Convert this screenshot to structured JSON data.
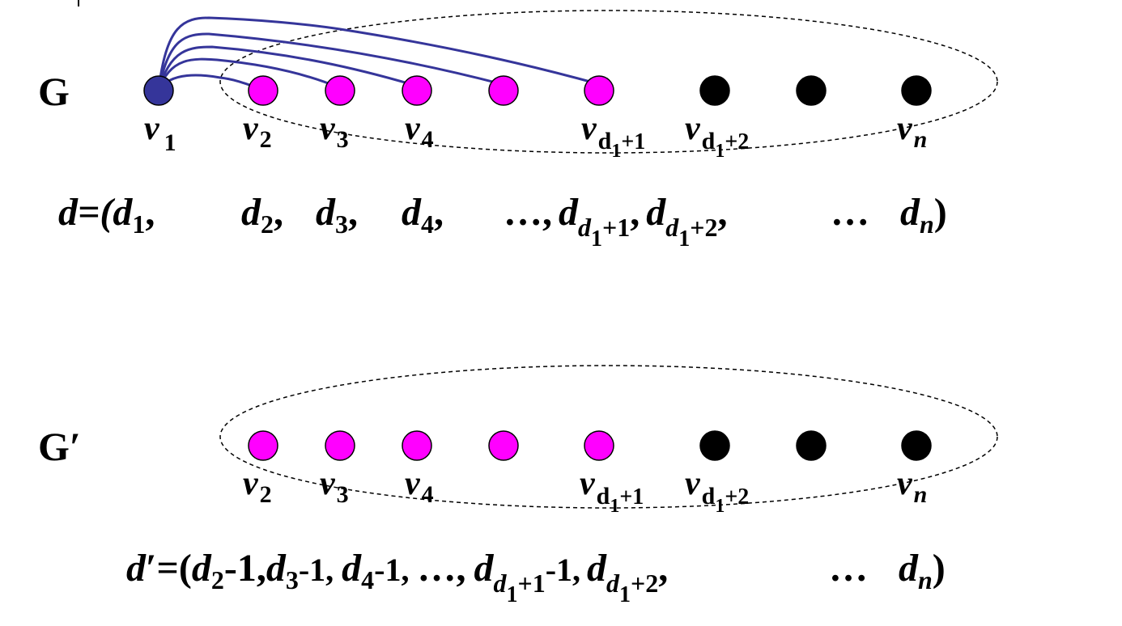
{
  "top": {
    "graph_label": "G",
    "vertex_labels": {
      "v1": {
        "base": "v",
        "sub": "1"
      },
      "v2": {
        "base": "v",
        "sub": "2"
      },
      "v3": {
        "base": "v",
        "sub": "3"
      },
      "v4": {
        "base": "v",
        "sub": "4"
      },
      "vd1p1": {
        "base": "v",
        "sub": "d",
        "subsub": "1",
        "tail": "+1"
      },
      "vd1p2": {
        "base": "v",
        "sub": "d",
        "subsub": "1",
        "tail": "+2"
      },
      "vn": {
        "base": "v",
        "sub": "n"
      }
    },
    "sequence": {
      "prefix": "d=(",
      "d1": {
        "base": "d",
        "sub": "1",
        "tail": ","
      },
      "d2": {
        "base": "d",
        "sub": "2",
        "tail": ","
      },
      "d3": {
        "base": "d",
        "sub": "3",
        "tail": ","
      },
      "d4": {
        "base": "d",
        "sub": "4",
        "tail": ","
      },
      "ellipsis1": "…,",
      "dd1p1": {
        "base": "d",
        "sub": "d",
        "subsub": "1",
        "tail": "+1",
        "after": ","
      },
      "dd1p2": {
        "base": "d",
        "sub": "d",
        "subsub": "1",
        "tail": "+2",
        "after": ","
      },
      "ellipsis2": "…",
      "dn": {
        "base": "d",
        "sub": "n"
      },
      "suffix": ")"
    }
  },
  "bottom": {
    "graph_label": "G′",
    "sequence": {
      "prefix_d": "d",
      "prefix_rest": "′=(",
      "d2": {
        "base": "d",
        "sub": "2",
        "tail": "-1,"
      },
      "d3": {
        "base": "d",
        "sub": "3",
        "tail": "-1,"
      },
      "d4": {
        "base": "d",
        "sub": "4",
        "tail": "-1,"
      },
      "ellipsis1": "…,",
      "dd1p1": {
        "base": "d",
        "sub": "d",
        "subsub": "1",
        "tail": "+1",
        "after": "-1,"
      },
      "dd1p2": {
        "base": "d",
        "sub": "d",
        "subsub": "1",
        "tail": "+2",
        "after": ","
      },
      "ellipsis2": "…",
      "dn": {
        "base": "d",
        "sub": "n"
      },
      "suffix": ")"
    }
  },
  "colors": {
    "v1": "#35359a",
    "neighbor": "#ff00ff",
    "other": "#000000",
    "edge": "#35359a"
  }
}
